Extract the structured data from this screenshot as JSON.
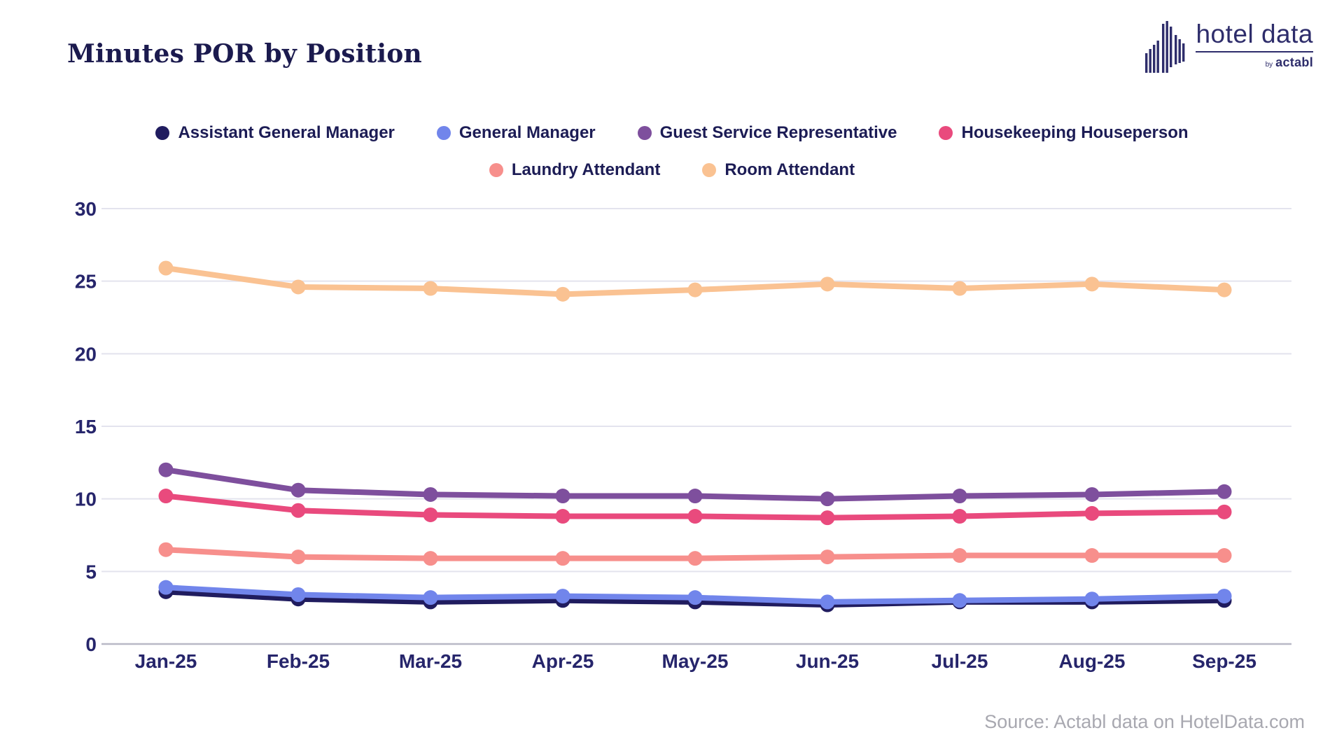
{
  "title": "Minutes POR by Position",
  "logo": {
    "name": "hotel data",
    "byline_prefix": "by",
    "byline_brand": "actabl",
    "icon": "skyline-bars-icon",
    "color": "#2e2d6b"
  },
  "source": "Source: Actabl data on HotelData.com",
  "colors": {
    "title_text": "#1b1a4e",
    "legend_text": "#1c1c55",
    "axis_text": "#26256b",
    "gridline": "#e3e3ee",
    "zero_line": "#b8b8c6",
    "source_text": "#a8a8b0",
    "background": "#ffffff"
  },
  "chart_data": {
    "type": "line",
    "title": "Minutes POR by Position",
    "xlabel": "",
    "ylabel": "",
    "ylim": [
      0,
      30
    ],
    "yticks": [
      0,
      5,
      10,
      15,
      20,
      25,
      30
    ],
    "grid": true,
    "legend_position": "top",
    "categories": [
      "Jan-25",
      "Feb-25",
      "Mar-25",
      "Apr-25",
      "May-25",
      "Jun-25",
      "Jul-25",
      "Aug-25",
      "Sep-25"
    ],
    "series": [
      {
        "name": "Assistant General Manager",
        "color": "#201c5f",
        "values": [
          3.6,
          3.1,
          2.9,
          3.0,
          2.9,
          2.7,
          2.9,
          2.9,
          3.0
        ]
      },
      {
        "name": "General Manager",
        "color": "#7185eb",
        "values": [
          3.9,
          3.4,
          3.2,
          3.3,
          3.2,
          2.9,
          3.0,
          3.1,
          3.3
        ]
      },
      {
        "name": "Guest Service Representative",
        "color": "#7e4f9d",
        "values": [
          12.0,
          10.6,
          10.3,
          10.2,
          10.2,
          10.0,
          10.2,
          10.3,
          10.5
        ]
      },
      {
        "name": "Housekeeping Houseperson",
        "color": "#e94a7d",
        "values": [
          10.2,
          9.2,
          8.9,
          8.8,
          8.8,
          8.7,
          8.8,
          9.0,
          9.1
        ]
      },
      {
        "name": "Laundry Attendant",
        "color": "#f78f8c",
        "values": [
          6.5,
          6.0,
          5.9,
          5.9,
          5.9,
          6.0,
          6.1,
          6.1,
          6.1
        ]
      },
      {
        "name": "Room Attendant",
        "color": "#fac292",
        "values": [
          25.9,
          24.6,
          24.5,
          24.1,
          24.4,
          24.8,
          24.5,
          24.8,
          24.4
        ]
      }
    ]
  }
}
